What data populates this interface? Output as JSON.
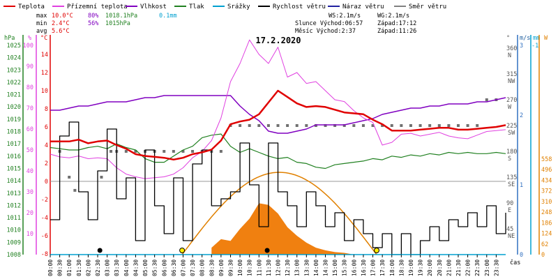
{
  "chart_data": {
    "type": "line",
    "date_title": "17.2.2020",
    "legend": [
      {
        "label": "Teplota",
        "color": "#e00000"
      },
      {
        "label": "Přízemní teplota",
        "color": "#e040e0"
      },
      {
        "label": "Vlhkost",
        "color": "#8000c0"
      },
      {
        "label": "Tlak",
        "color": "#208020"
      },
      {
        "label": "Srážky",
        "color": "#00a0d0"
      },
      {
        "label": "Rychlost větru",
        "color": "#000000"
      },
      {
        "label": "Náraz větru",
        "color": "#2020a0"
      },
      {
        "label": "Směr větru",
        "color": "#808080"
      }
    ],
    "stats": {
      "max": {
        "label": "max",
        "temp": "10.0°C",
        "hum": "80%",
        "press": "1018.1hPa",
        "rain": "0.1mm"
      },
      "min": {
        "label": "min",
        "temp": "2.4°C",
        "hum": "56%",
        "press": "1015hPa"
      },
      "avg": {
        "label": "avg",
        "temp": "5.6°C"
      }
    },
    "info": {
      "ws": "WS:2.1m/s",
      "wg": "WG:2.1m/s",
      "sun": "Slunce Východ:06:57",
      "sun_set": "Západ:17:12",
      "moon": "Měsíc Východ:2:37",
      "moon_set": "Západ:11:26"
    },
    "xlabel": "čas",
    "x_ticks": [
      "00:00",
      "00:30",
      "01:00",
      "01:30",
      "02:00",
      "02:30",
      "03:00",
      "03:30",
      "04:00",
      "04:30",
      "05:00",
      "05:30",
      "06:00",
      "06:30",
      "07:00",
      "07:30",
      "08:00",
      "08:30",
      "09:00",
      "09:30",
      "10:00",
      "10:30",
      "11:00",
      "11:30",
      "12:00",
      "12:30",
      "13:00",
      "13:30",
      "14:00",
      "14:30",
      "15:00",
      "15:30",
      "16:00",
      "16:30",
      "17:00",
      "17:30",
      "18:00",
      "18:30",
      "19:00",
      "19:30",
      "20:00",
      "20:30",
      "21:00",
      "21:30",
      "22:00",
      "22:30",
      "23:00",
      "23:30"
    ],
    "axes": {
      "hpa": {
        "unit": "hPa",
        "ticks": [
          1008,
          1009,
          1010,
          1011,
          1012,
          1013,
          1014,
          1015,
          1016,
          1017,
          1018,
          1019,
          1020,
          1021,
          1022,
          1023,
          1024,
          1025
        ]
      },
      "pct": {
        "unit": "%",
        "ticks": [
          10,
          20,
          30,
          40,
          50,
          60,
          70,
          80,
          90,
          100
        ]
      },
      "temp": {
        "unit": "°C",
        "ticks": [
          -8,
          -6,
          -4,
          -2,
          0,
          2,
          4,
          6,
          8,
          10,
          12,
          14
        ]
      },
      "dir": {
        "unit": "°",
        "ticks": [
          "360",
          "315",
          "270",
          "225",
          "180",
          "135",
          "90",
          "45"
        ],
        "labels": [
          "N",
          "NW",
          "W",
          "SW",
          "S",
          "SE",
          "E",
          "NE"
        ]
      },
      "ms": {
        "unit": "m/s",
        "ticks": [
          0,
          1,
          2,
          3
        ]
      },
      "mm": {
        "unit": "mm",
        "ticks": [
          "-1"
        ]
      },
      "w": {
        "unit": "W",
        "ticks": [
          0,
          62,
          124,
          186,
          248,
          310,
          372,
          434,
          496,
          558
        ]
      }
    },
    "series": [
      {
        "name": "Teplota",
        "unit": "°C",
        "x": [
          0,
          0.5,
          1,
          1.5,
          2,
          2.5,
          3,
          3.5,
          4,
          4.5,
          5,
          5.5,
          6,
          6.5,
          7,
          7.5,
          8,
          8.5,
          9,
          9.5,
          10,
          10.5,
          11,
          11.5,
          12,
          12.5,
          13,
          13.5,
          14,
          14.5,
          15,
          15.5,
          16,
          16.5,
          17,
          17.5,
          18,
          18.5,
          19,
          19.5,
          20,
          20.5,
          21,
          21.5,
          22,
          22.5,
          23,
          23.5,
          24
        ],
        "y": [
          4.4,
          4.4,
          4.4,
          4.6,
          4.2,
          4.4,
          4.5,
          4.0,
          3.6,
          3.0,
          2.8,
          2.7,
          2.6,
          2.4,
          2.6,
          3.0,
          3.2,
          3.5,
          4.5,
          6.3,
          6.6,
          6.8,
          7.4,
          8.7,
          10.0,
          9.3,
          8.6,
          8.2,
          8.3,
          8.2,
          7.9,
          7.6,
          7.5,
          7.4,
          6.8,
          6.3,
          5.6,
          5.6,
          5.6,
          5.7,
          5.8,
          5.9,
          5.9,
          5.7,
          5.7,
          5.8,
          5.9,
          6.0,
          6.2
        ]
      },
      {
        "name": "Přízemní teplota",
        "unit": "°C",
        "x": [
          0,
          0.5,
          1,
          1.5,
          2,
          2.5,
          3,
          3.5,
          4,
          4.5,
          5,
          5.5,
          6,
          6.5,
          7,
          7.5,
          8,
          8.5,
          9,
          9.5,
          10,
          10.5,
          11,
          11.5,
          12,
          12.5,
          13,
          13.5,
          14,
          14.5,
          15,
          15.5,
          16,
          16.5,
          17,
          17.5,
          18,
          18.5,
          19,
          19.5,
          20,
          20.5,
          21,
          21.5,
          22,
          22.5,
          23,
          23.5,
          24
        ],
        "y": [
          3.0,
          2.7,
          2.6,
          2.8,
          2.5,
          2.6,
          2.5,
          1.5,
          0.8,
          0.5,
          0.3,
          0.4,
          0.5,
          0.8,
          1.5,
          2.6,
          3.3,
          4.5,
          7.0,
          11.0,
          13.0,
          15.6,
          14.0,
          13.0,
          14.8,
          11.5,
          12.0,
          10.8,
          11.0,
          10.0,
          9.0,
          8.8,
          7.8,
          7.0,
          6.5,
          4.0,
          4.3,
          5.2,
          5.3,
          5.0,
          5.2,
          5.4,
          5.0,
          4.8,
          4.7,
          5.1,
          5.5,
          5.6,
          5.7
        ]
      },
      {
        "name": "Vlhkost",
        "unit": "%",
        "x": [
          0,
          0.5,
          1,
          1.5,
          2,
          2.5,
          3,
          3.5,
          4,
          4.5,
          5,
          5.5,
          6,
          6.5,
          7,
          7.5,
          8,
          8.5,
          9,
          9.5,
          10,
          10.5,
          11,
          11.5,
          12,
          12.5,
          13,
          13.5,
          14,
          14.5,
          15,
          15.5,
          16,
          16.5,
          17,
          17.5,
          18,
          18.5,
          19,
          19.5,
          20,
          20.5,
          21,
          21.5,
          22,
          22.5,
          23,
          23.5,
          24
        ],
        "y": [
          69,
          69,
          70,
          71,
          71,
          72,
          73,
          73,
          73,
          74,
          75,
          75,
          76,
          76,
          76,
          76,
          76,
          76,
          76,
          76,
          71,
          67,
          64,
          59,
          58,
          58,
          59,
          60,
          62,
          62,
          62,
          62,
          63,
          64,
          65,
          67,
          68,
          69,
          70,
          70,
          71,
          71,
          72,
          72,
          72,
          73,
          73,
          74,
          75
        ]
      },
      {
        "name": "Tlak",
        "unit": "hPa",
        "x": [
          0,
          0.5,
          1,
          1.5,
          2,
          2.5,
          3,
          3.5,
          4,
          4.5,
          5,
          5.5,
          6,
          6.5,
          7,
          7.5,
          8,
          8.5,
          9,
          9.5,
          10,
          10.5,
          11,
          11.5,
          12,
          12.5,
          13,
          13.5,
          14,
          14.5,
          15,
          15.5,
          16,
          16.5,
          17,
          17.5,
          18,
          18.5,
          19,
          19.5,
          20,
          20.5,
          21,
          21.5,
          22,
          22.5,
          23,
          23.5,
          24
        ],
        "y": [
          1016.7,
          1016.6,
          1016.5,
          1016.5,
          1016.7,
          1016.8,
          1016.6,
          1017.0,
          1016.7,
          1016.5,
          1015.8,
          1015.5,
          1015.5,
          1016.0,
          1016.5,
          1016.8,
          1017.5,
          1017.7,
          1017.8,
          1016.8,
          1016.3,
          1016.6,
          1016.3,
          1016.0,
          1015.8,
          1015.9,
          1015.5,
          1015.4,
          1015.1,
          1015.0,
          1015.3,
          1015.4,
          1015.5,
          1015.6,
          1015.8,
          1015.7,
          1016.0,
          1015.9,
          1016.1,
          1016.0,
          1016.2,
          1016.1,
          1016.3,
          1016.2,
          1016.3,
          1016.2,
          1016.2,
          1016.3,
          1016.2
        ]
      },
      {
        "name": "Rychlost větru",
        "unit": "m/s",
        "x": [
          0,
          0.5,
          1,
          1.5,
          2,
          2.5,
          3,
          3.5,
          4,
          4.5,
          5,
          5.5,
          6,
          6.5,
          7,
          7.5,
          8,
          8.5,
          9,
          9.5,
          10,
          10.5,
          11,
          11.5,
          12,
          12.5,
          13,
          13.5,
          14,
          14.5,
          15,
          15.5,
          16,
          16.5,
          17,
          17.5,
          18,
          18.5,
          19,
          19.5,
          20,
          20.5,
          21,
          21.5,
          22,
          22.5,
          23,
          23.5,
          24
        ],
        "y": [
          0.5,
          1.7,
          1.9,
          0.9,
          0.5,
          1.2,
          1.8,
          0.8,
          1.1,
          0.2,
          1.5,
          0.7,
          0.3,
          1.1,
          0.2,
          1.3,
          1.5,
          0.7,
          0.8,
          0.9,
          1.6,
          1.0,
          0.4,
          1.6,
          0.9,
          0.7,
          0.4,
          0.9,
          0.7,
          0.4,
          0.6,
          0.2,
          0.5,
          0.3,
          0.1,
          0.3,
          0.0,
          0.3,
          0.0,
          0.2,
          0.4,
          0.2,
          0.5,
          0.4,
          0.6,
          0.4,
          0.7,
          0.3,
          0.6
        ]
      },
      {
        "name": "Srážky",
        "unit": "mm",
        "x": [
          0,
          24
        ],
        "y": [
          0,
          0
        ]
      },
      {
        "name": "Směr větru",
        "unit": "°",
        "x": [
          0.5,
          1,
          1.3,
          2.7,
          3.2,
          3.5,
          4,
          4.5,
          5,
          5.5,
          6,
          6.5,
          7,
          7.5,
          8,
          8.5,
          9,
          9.5,
          10,
          10.5,
          11,
          11.5,
          12,
          12.5,
          13,
          13.5,
          14,
          14.5,
          15,
          15.5,
          16,
          16.5,
          17,
          17.5,
          18,
          18.5,
          19,
          19.5,
          20,
          20.5,
          21,
          21.5,
          22,
          22.5,
          23,
          23.5
        ],
        "y": [
          180,
          135,
          112,
          135,
          180,
          180,
          180,
          180,
          180,
          180,
          180,
          180,
          180,
          180,
          180,
          180,
          180,
          225,
          225,
          225,
          225,
          225,
          225,
          225,
          225,
          225,
          225,
          225,
          225,
          225,
          225,
          225,
          225,
          225,
          225,
          225,
          225,
          225,
          225,
          225,
          225,
          225,
          225,
          225,
          270,
          270
        ]
      }
    ],
    "solar": {
      "name": "Solární radiace",
      "unit": "W",
      "x": [
        8.5,
        9,
        9.5,
        10,
        10.5,
        11,
        11.5,
        12,
        12.5,
        13,
        13.5,
        14,
        14.5,
        15,
        15.5,
        16
      ],
      "y": [
        40,
        90,
        80,
        150,
        210,
        300,
        290,
        240,
        160,
        110,
        70,
        40,
        25,
        15,
        10,
        0
      ]
    },
    "sun_curve": {
      "rise": "06:57",
      "set": "17:12"
    }
  }
}
